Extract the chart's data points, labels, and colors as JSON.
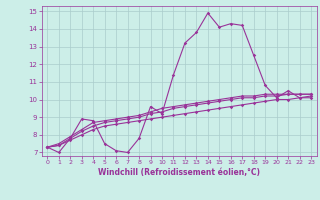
{
  "title": "",
  "xlabel": "Windchill (Refroidissement éolien,°C)",
  "ylabel": "",
  "background_color": "#cceee8",
  "line_color": "#993399",
  "grid_color": "#aacccc",
  "xlim": [
    -0.5,
    23.5
  ],
  "ylim": [
    6.8,
    15.3
  ],
  "xticks": [
    0,
    1,
    2,
    3,
    4,
    5,
    6,
    7,
    8,
    9,
    10,
    11,
    12,
    13,
    14,
    15,
    16,
    17,
    18,
    19,
    20,
    21,
    22,
    23
  ],
  "yticks": [
    7,
    8,
    9,
    10,
    11,
    12,
    13,
    14,
    15
  ],
  "line1": [
    7.3,
    7.0,
    7.8,
    8.9,
    8.8,
    7.5,
    7.1,
    7.0,
    7.8,
    9.6,
    9.2,
    11.4,
    13.2,
    13.8,
    14.9,
    14.1,
    14.3,
    14.2,
    12.5,
    10.8,
    10.1,
    10.5,
    10.1,
    10.2
  ],
  "line2": [
    7.3,
    7.4,
    7.8,
    8.2,
    8.5,
    8.7,
    8.8,
    8.9,
    9.0,
    9.2,
    9.3,
    9.5,
    9.6,
    9.7,
    9.8,
    9.9,
    10.0,
    10.1,
    10.1,
    10.2,
    10.2,
    10.3,
    10.3,
    10.3
  ],
  "line3": [
    7.3,
    7.4,
    7.7,
    8.0,
    8.3,
    8.5,
    8.6,
    8.7,
    8.8,
    8.9,
    9.0,
    9.1,
    9.2,
    9.3,
    9.4,
    9.5,
    9.6,
    9.7,
    9.8,
    9.9,
    10.0,
    10.0,
    10.1,
    10.1
  ],
  "line4": [
    7.3,
    7.5,
    7.9,
    8.3,
    8.7,
    8.8,
    8.9,
    9.0,
    9.1,
    9.3,
    9.5,
    9.6,
    9.7,
    9.8,
    9.9,
    10.0,
    10.1,
    10.2,
    10.2,
    10.3,
    10.3,
    10.3,
    10.3,
    10.3
  ]
}
